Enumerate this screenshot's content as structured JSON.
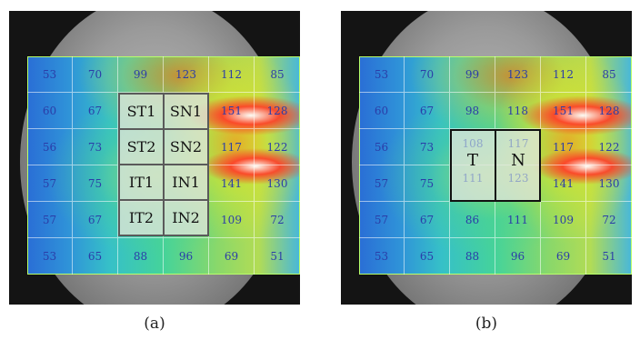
{
  "panel_a": {
    "grid": [
      [
        "53",
        "70",
        "99",
        "123",
        "112",
        "85"
      ],
      [
        "60",
        "67",
        "",
        "",
        "151",
        "128"
      ],
      [
        "56",
        "73",
        "",
        "",
        "117",
        "122"
      ],
      [
        "57",
        "75",
        "",
        "",
        "141",
        "130"
      ],
      [
        "57",
        "67",
        "",
        "",
        "109",
        "72"
      ],
      [
        "53",
        "65",
        "88",
        "96",
        "69",
        "51"
      ]
    ],
    "sectors": [
      "ST1",
      "SN1",
      "ST2",
      "SN2",
      "IT1",
      "IN1",
      "IT2",
      "IN2"
    ],
    "caption": "(a)"
  },
  "panel_b": {
    "grid": [
      [
        "53",
        "70",
        "99",
        "123",
        "112",
        "85"
      ],
      [
        "60",
        "67",
        "98",
        "118",
        "151",
        "128"
      ],
      [
        "56",
        "73",
        "",
        "",
        "117",
        "122"
      ],
      [
        "57",
        "75",
        "",
        "",
        "141",
        "130"
      ],
      [
        "57",
        "67",
        "86",
        "111",
        "109",
        "72"
      ],
      [
        "53",
        "65",
        "88",
        "96",
        "69",
        "51"
      ]
    ],
    "tn_labels": [
      "T",
      "N"
    ],
    "faded_values": [
      "108",
      "117",
      "111",
      "123"
    ],
    "caption": "(b)"
  },
  "colors": {
    "grid_text": "#2b3da8",
    "sector_border": "#5a5a5a",
    "tn_border": "#111111"
  }
}
